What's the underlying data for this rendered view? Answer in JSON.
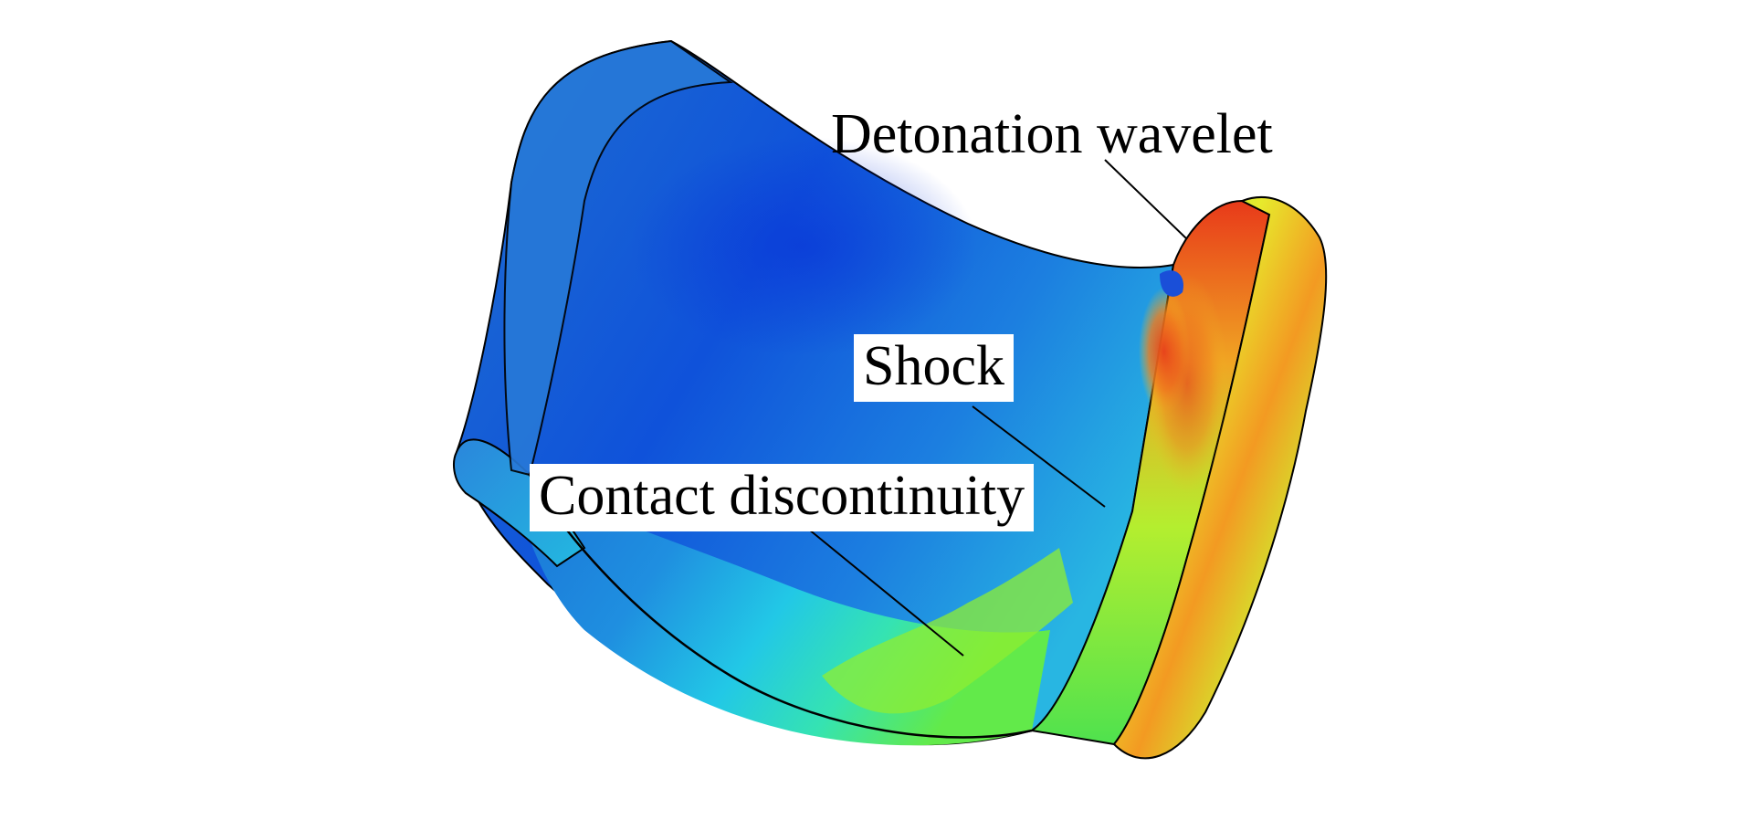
{
  "figure": {
    "background_color": "#ffffff",
    "colormap": [
      "#0a3fd6",
      "#1e7fe0",
      "#23c9e8",
      "#2fe7b0",
      "#7bef2a",
      "#e6f02a",
      "#f09a1e",
      "#e3261a"
    ],
    "labels": {
      "detonation_wavelet": "Detonation wavelet",
      "shock": "Shock",
      "contact_discontinuity": "Contact discontinuity"
    }
  }
}
